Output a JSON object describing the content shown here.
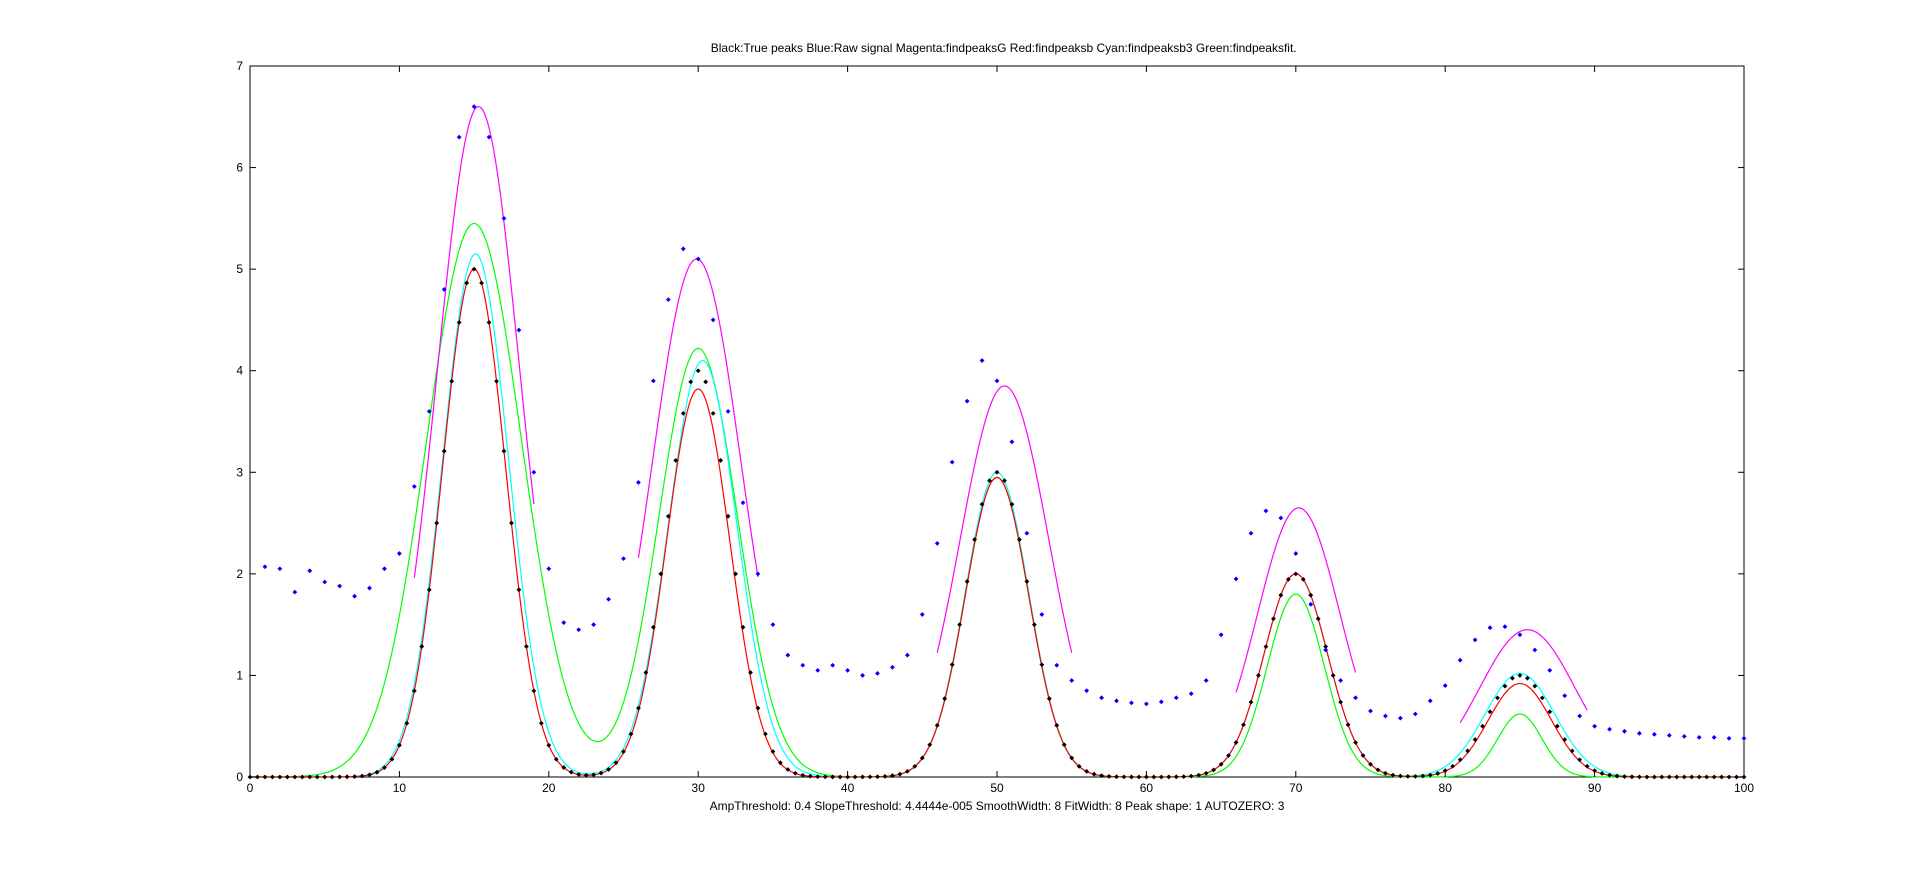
{
  "chart_data": {
    "type": "scatter",
    "title": "Black:True peaks   Blue:Raw signal    Magenta:findpeaksG   Red:findpeaksb    Cyan:findpeaksb3    Green:findpeaksfit.",
    "xlabel": "AmpThreshold: 0.4    SlopeThreshold: 4.4444e-005    SmoothWidth: 8    FitWidth: 8    Peak shape: 1    AUTOZERO: 3",
    "ylabel": "",
    "xlim": [
      0,
      100
    ],
    "ylim": [
      0,
      7
    ],
    "x_ticks": [
      0,
      10,
      20,
      30,
      40,
      50,
      60,
      70,
      80,
      90,
      100
    ],
    "y_ticks": [
      0,
      1,
      2,
      3,
      4,
      5,
      6,
      7
    ],
    "grid": false,
    "legend": "none",
    "colors": {
      "true_peaks": "#000000",
      "raw_signal": "#0000ff",
      "findpeaksG": "#ff00ff",
      "findpeaksb": "#ff0000",
      "findpeaksb3": "#00ffff",
      "findpeaksfit": "#00ff00"
    },
    "raw_signal": {
      "x": [
        1,
        2,
        3,
        4,
        5,
        6,
        7,
        8,
        9,
        10,
        11,
        12,
        13,
        14,
        15,
        16,
        17,
        18,
        19,
        20,
        21,
        22,
        23,
        24,
        25,
        26,
        27,
        28,
        29,
        30,
        31,
        32,
        33,
        34,
        35,
        36,
        37,
        38,
        39,
        40,
        41,
        42,
        43,
        44,
        45,
        46,
        47,
        48,
        49,
        50,
        51,
        52,
        53,
        54,
        55,
        56,
        57,
        58,
        59,
        60,
        61,
        62,
        63,
        64,
        65,
        66,
        67,
        68,
        69,
        70,
        71,
        72,
        73,
        74,
        75,
        76,
        77,
        78,
        79,
        80,
        81,
        82,
        83,
        84,
        85,
        86,
        87,
        88,
        89,
        90,
        91,
        92,
        93,
        94,
        95,
        96,
        97,
        98,
        99,
        100
      ],
      "y": [
        2.07,
        2.05,
        1.82,
        2.03,
        1.92,
        1.88,
        1.78,
        1.86,
        2.05,
        2.2,
        2.86,
        3.6,
        4.8,
        6.3,
        6.6,
        6.3,
        5.5,
        4.4,
        3.0,
        2.05,
        1.52,
        1.45,
        1.5,
        1.75,
        2.15,
        2.9,
        3.9,
        4.7,
        5.2,
        5.1,
        4.5,
        3.6,
        2.7,
        2.0,
        1.5,
        1.2,
        1.1,
        1.05,
        1.1,
        1.05,
        1.0,
        1.02,
        1.08,
        1.2,
        1.6,
        2.3,
        3.1,
        3.7,
        4.1,
        3.9,
        3.3,
        2.4,
        1.6,
        1.1,
        0.95,
        0.85,
        0.78,
        0.75,
        0.73,
        0.72,
        0.74,
        0.78,
        0.82,
        0.95,
        1.4,
        1.95,
        2.4,
        2.62,
        2.55,
        2.2,
        1.7,
        1.25,
        0.95,
        0.78,
        0.65,
        0.6,
        0.58,
        0.62,
        0.75,
        0.9,
        1.15,
        1.35,
        1.47,
        1.48,
        1.4,
        1.25,
        1.05,
        0.8,
        0.6,
        0.5,
        0.47,
        0.45,
        0.43,
        0.42,
        0.41,
        0.4,
        0.39,
        0.39,
        0.38,
        0.38
      ]
    },
    "true_peaks_points": {
      "centers": [
        15,
        30,
        50,
        70,
        85
      ],
      "heights": [
        5,
        4,
        3,
        2,
        1
      ],
      "widths": [
        5,
        5,
        5,
        5,
        5
      ],
      "step": 0.5
    },
    "findpeaksG": {
      "centers": [
        15.3,
        29.9,
        50.5,
        70.2,
        85.5
      ],
      "heights": [
        6.6,
        5.1,
        3.85,
        2.65,
        1.45
      ],
      "widths": [
        6.5,
        7.0,
        7.0,
        6.5,
        7.5
      ],
      "ranges": [
        [
          11,
          19
        ],
        [
          26,
          34
        ],
        [
          46,
          55
        ],
        [
          66,
          74
        ],
        [
          81,
          89.5
        ]
      ]
    },
    "findpeaksb": {
      "centers": [
        15,
        30,
        50,
        70,
        85
      ],
      "heights": [
        5.0,
        3.82,
        2.95,
        2.0,
        0.92
      ],
      "widths": [
        5,
        5,
        5,
        5,
        5
      ],
      "range": [
        0,
        100
      ]
    },
    "findpeaksb3": {
      "centers": [
        15.1,
        30.3,
        50,
        70,
        85
      ],
      "heights": [
        5.15,
        4.1,
        3.0,
        2.0,
        1.02
      ],
      "widths": [
        5.2,
        5.4,
        5.0,
        5.0,
        5.5
      ],
      "range": [
        0,
        100
      ]
    },
    "findpeaksfit": {
      "centers": [
        15,
        30,
        50,
        70,
        85
      ],
      "heights": [
        5.45,
        4.22,
        2.95,
        1.8,
        0.62
      ],
      "widths": [
        7.5,
        6.2,
        5.0,
        4.5,
        3.5
      ],
      "range": [
        0,
        100
      ]
    }
  }
}
